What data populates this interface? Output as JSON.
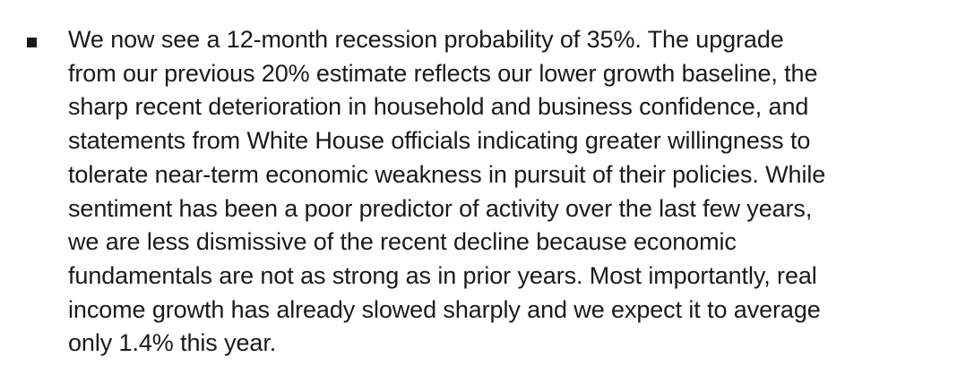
{
  "bullet": {
    "lines": [
      "We now see a 12-month recession probability of 35%. The upgrade",
      "from our previous 20% estimate reflects our lower growth baseline, the",
      "sharp recent deterioration in household and business confidence, and",
      "statements from White House officials indicating greater willingness to",
      "tolerate near-term economic weakness in pursuit of their policies. While",
      "sentiment has been a poor predictor of activity over the last few years,",
      "we are less dismissive of the recent decline because economic",
      "fundamentals are not as strong as in prior years. Most importantly, real",
      "income growth has already slowed sharply and we expect it to average",
      "only 1.4% this year."
    ]
  }
}
